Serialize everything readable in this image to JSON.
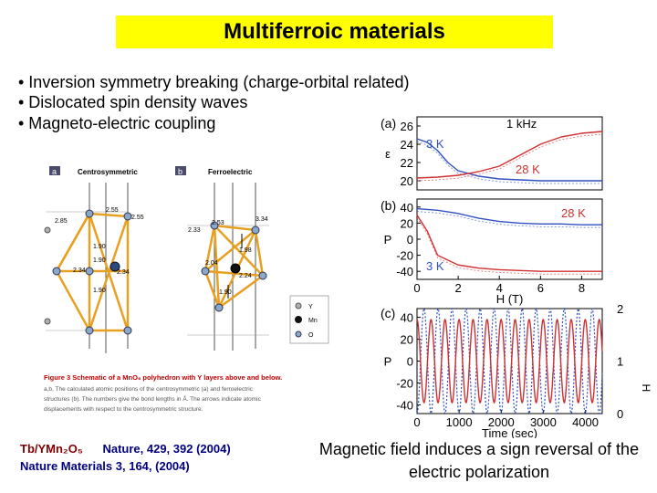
{
  "title": "Multiferroic materials",
  "bullets": [
    "• Inversion symmetry breaking (charge-orbital related)",
    "• Dislocated spin density waves",
    "• Magneto-electric coupling"
  ],
  "structure_figure": {
    "panel_a_letter": "a",
    "panel_a_label": "Centrosymmetric",
    "panel_b_letter": "b",
    "panel_b_label": "Ferroelectric",
    "bond_lengths_a": [
      "2.85",
      "2.55",
      "2.55",
      "1.90",
      "1.90",
      "2.34",
      "2.34",
      "1.90"
    ],
    "bond_lengths_b": [
      "2.33",
      "2.53",
      "3.34",
      "1.98",
      "2.04",
      "2.24",
      "1.90"
    ],
    "legend": [
      "Y",
      "Mn",
      "O"
    ],
    "caption_title": "Figure 3 Schematic of a MnO₆ polyhedron with Y layers above and below.",
    "caption_lines": [
      "a,b, The calculated atomic positions of the centrosymmetric (a) and ferroelectric",
      "structures (b). The numbers give the bond lengths in Å. The arrows indicate atomic",
      "displacements with respect to the centrosymmetric structure."
    ]
  },
  "references": {
    "formula": "Tb/YMn₂O₅",
    "ref1": "Nature, 429, 392 (2004)",
    "ref2": "Nature Materials 3, 164, (2004)"
  },
  "conclusion": "Magnetic field induces a sign reversal of the electric polarization",
  "chart_data": [
    {
      "panel": "(a)",
      "type": "line",
      "annotations": [
        "1 kHz",
        "3 K",
        "28 K"
      ],
      "ylabel": "ε",
      "xlim": [
        0,
        9
      ],
      "ylim": [
        19,
        27
      ],
      "yticks": [
        20,
        22,
        24,
        26
      ],
      "series": [
        {
          "name": "3 K",
          "x": [
            0,
            0.5,
            1,
            1.5,
            2,
            3,
            4,
            5,
            6,
            7,
            8,
            9
          ],
          "y": [
            24.6,
            24.2,
            23.3,
            22.0,
            21.1,
            20.5,
            20.2,
            20.1,
            20.0,
            20.0,
            20.0,
            20.0
          ]
        },
        {
          "name": "28 K",
          "x": [
            0,
            1,
            2,
            3,
            4,
            5,
            6,
            7,
            8,
            9
          ],
          "y": [
            20.3,
            20.4,
            20.6,
            21.0,
            21.6,
            22.8,
            24.0,
            24.8,
            25.2,
            25.4
          ]
        }
      ]
    },
    {
      "panel": "(b)",
      "type": "line",
      "annotations": [
        "28 K",
        "3 K"
      ],
      "ylabel": "P",
      "xlabel": "H (T)",
      "xlim": [
        0,
        9
      ],
      "ylim": [
        -50,
        50
      ],
      "yticks": [
        -40,
        -20,
        0,
        20,
        40
      ],
      "xticks": [
        0,
        2,
        4,
        6,
        8
      ],
      "series": [
        {
          "name": "28 K",
          "x": [
            0,
            1,
            2,
            3,
            4,
            5,
            6,
            7,
            8,
            9
          ],
          "y": [
            38,
            36,
            32,
            26,
            22,
            20,
            19,
            19,
            18,
            18
          ]
        },
        {
          "name": "3 K",
          "x": [
            0,
            0.5,
            1,
            2,
            3,
            4,
            5,
            6,
            7,
            8,
            9
          ],
          "y": [
            30,
            10,
            -20,
            -32,
            -36,
            -38,
            -39,
            -40,
            -40,
            -40,
            -40
          ]
        }
      ]
    },
    {
      "panel": "(c)",
      "type": "line",
      "ylabel": "P",
      "y2label": "H",
      "xlabel": "Time (sec)",
      "xlim": [
        0,
        4400
      ],
      "ylim": [
        -48,
        48
      ],
      "yticks": [
        -40,
        -20,
        0,
        20,
        40
      ],
      "xticks": [
        0,
        1000,
        2000,
        3000,
        4000
      ],
      "y2ticks": [
        0,
        1,
        2
      ],
      "series": [
        {
          "name": "P",
          "period": 333,
          "amplitude": 38,
          "x_start": 0,
          "x_end": 4400
        },
        {
          "name": "H",
          "period": 333,
          "amplitude": 1,
          "offset": 1,
          "x_start": 0,
          "x_end": 4400
        }
      ]
    }
  ]
}
